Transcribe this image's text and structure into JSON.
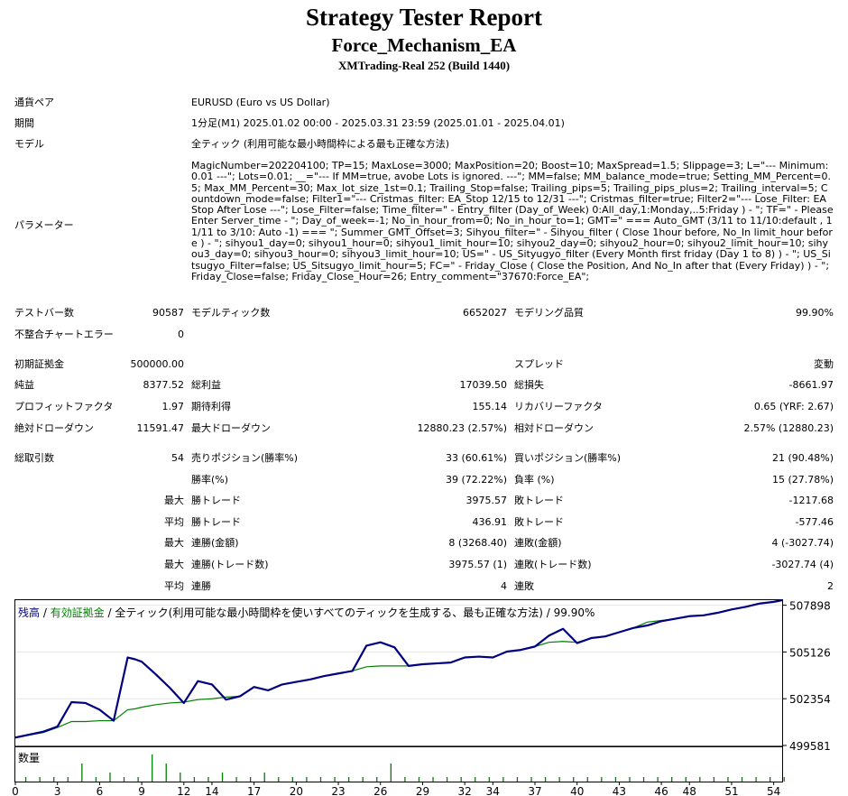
{
  "header": {
    "title": "Strategy Tester Report",
    "ea_name": "Force_Mechanism_EA",
    "server": "XMTrading-Real 252 (Build 1440)"
  },
  "info": {
    "symbol_label": "通貨ペア",
    "symbol_value": "EURUSD (Euro vs US Dollar)",
    "period_label": "期間",
    "period_value": "1分足(M1) 2025.01.02 00:00 - 2025.03.31 23:59 (2025.01.01 - 2025.04.01)",
    "model_label": "モデル",
    "model_value": "全ティック (利用可能な最小時間枠による最も正確な方法)",
    "params_label": "パラメーター",
    "params_value": "MagicNumber=202204100; TP=15; MaxLose=3000; MaxPosition=20; Boost=10; MaxSpread=1.5; Slippage=3; L=\"--- Minimum:0.01 ---\"; Lots=0.01; __=\"--- If MM=true, avobe Lots is ignored. ---\"; MM=false; MM_balance_mode=true; Setting_MM_Percent=0.5; Max_MM_Percent=30; Max_lot_size_1st=0.1; Trailing_Stop=false; Trailing_pips=5; Trailing_pips_plus=2; Trailing_interval=5; Countdown_mode=false; Filter1=\"--- Cristmas_filter: EA_Stop 12/15 to 12/31 ---\"; Cristmas_filter=true; Filter2=\"--- Lose_Filter: EA Stop After Lose ---\"; Lose_Filter=false; Time_filter=\" - Entry_filter (Day_of_Week) 0:All_day,1:Monday,..5:Friday ) - \"; TF=\" - Please Enter Server_time - \"; Day_of_week=-1; No_in_hour_from=0; No_in_hour_to=1; GMT=\" === Auto_GMT (3/11 to 11/10:default , 11/11 to 3/10: Auto -1) === \"; Summer_GMT_Offset=3; Sihyou_filter=\" - Sihyou_filter ( Close 1hour before, No_In limit_hour before ) - \"; sihyou1_day=0; sihyou1_hour=0; sihyou1_limit_hour=10; sihyou2_day=0; sihyou2_hour=0; sihyou2_limit_hour=10; sihyou3_day=0; sihyou3_hour=0; sihyou3_limit_hour=10; US=\" - US_Sityugyo_filter (Every Month first friday (Day 1 to 8) ) - \"; US_Sitsugyo_Filter=false; US_Sitsugyo_limit_hour=5; FC=\" - Friday_Close ( Close the Position, And No_In after that (Every Friday) ) - \"; Friday_Close=false; Friday_Close_Hour=26; Entry_comment=\"37670:Force_EA\";"
  },
  "stats": {
    "bars_label": "テストバー数",
    "bars_value": "90587",
    "ticks_label": "モデルティック数",
    "ticks_value": "6652027",
    "quality_label": "モデリング品質",
    "quality_value": "99.90%",
    "mismatch_label": "不整合チャートエラー",
    "mismatch_value": "0",
    "deposit_label": "初期証拠金",
    "deposit_value": "500000.00",
    "spread_label": "スプレッド",
    "spread_value": "変動",
    "net_label": "純益",
    "net_value": "8377.52",
    "gross_profit_label": "総利益",
    "gross_profit_value": "17039.50",
    "gross_loss_label": "総損失",
    "gross_loss_value": "-8661.97",
    "pf_label": "プロフィットファクタ",
    "pf_value": "1.97",
    "expected_label": "期待利得",
    "expected_value": "155.14",
    "recovery_label": "リカバリーファクタ",
    "recovery_value": "0.65 (YRF: 2.67)",
    "abs_dd_label": "絶対ドローダウン",
    "abs_dd_value": "11591.47",
    "max_dd_label": "最大ドローダウン",
    "max_dd_value": "12880.23 (2.57%)",
    "rel_dd_label": "相対ドローダウン",
    "rel_dd_value": "2.57% (12880.23)",
    "total_label": "総取引数",
    "total_value": "54",
    "short_label": "売りポジション(勝率%)",
    "short_value": "33 (60.61%)",
    "long_label": "買いポジション(勝率%)",
    "long_value": "21 (90.48%)",
    "winrate_label": "勝率(%)",
    "winrate_value": "39 (72.22%)",
    "lossrate_label": "負率 (%)",
    "lossrate_value": "15 (27.78%)",
    "max_word": "最大",
    "avg_word": "平均",
    "win_trade_label": "勝トレード",
    "max_win_value": "3975.57",
    "loss_trade_label": "敗トレード",
    "max_loss_value": "-1217.68",
    "avg_win_value": "436.91",
    "avg_loss_value": "-577.46",
    "consec_win_amt_label": "連勝(金額)",
    "consec_win_amt_value": "8 (3268.40)",
    "consec_loss_amt_label": "連敗(金額)",
    "consec_loss_amt_value": "4 (-3027.74)",
    "consec_win_cnt_label": "連勝(トレード数)",
    "consec_win_cnt_value": "3975.57 (1)",
    "consec_loss_cnt_label": "連敗(トレード数)",
    "consec_loss_cnt_value": "-3027.74 (4)",
    "consec_win_label": "連勝",
    "consec_win_value": "4",
    "consec_loss_label": "連敗",
    "consec_loss_value": "2"
  },
  "chart_data": {
    "type": "line",
    "legend_balance": "残高",
    "legend_sep1": " / ",
    "legend_equity": "有効証拠金",
    "legend_sep2": " / ",
    "legend_model": "全ティック(利用可能な最小時間枠を使いすべてのティックを生成する、最も正確な方法) / 99.90%",
    "volume_label": "数量",
    "colors": {
      "balance": "#000080",
      "equity": "#008000",
      "volume": "#008000"
    },
    "ylim": [
      499581,
      508200
    ],
    "y_ticks": [
      499581,
      502354,
      505126,
      507898
    ],
    "x_ticks": [
      0,
      3,
      6,
      9,
      12,
      14,
      17,
      20,
      23,
      26,
      29,
      32,
      34,
      37,
      40,
      43,
      46,
      48,
      51,
      54
    ],
    "xlim": [
      0,
      54.6
    ],
    "series": [
      {
        "name": "残高",
        "x": [
          0,
          2,
          3,
          4,
          5,
          6,
          7,
          8,
          8.5,
          9,
          10,
          11,
          12,
          13,
          14,
          15,
          16,
          17,
          18,
          19,
          20,
          21,
          22,
          23,
          24,
          25,
          26,
          27,
          28,
          29,
          30,
          31,
          32,
          33,
          34,
          35,
          36,
          37,
          38,
          39,
          40,
          41,
          42,
          43,
          44,
          45,
          46,
          47,
          48,
          49,
          50,
          51,
          52,
          53,
          54,
          54.6
        ],
        "values": [
          500050,
          500400,
          500700,
          502150,
          502100,
          501700,
          501050,
          504800,
          504700,
          504550,
          503800,
          503000,
          502100,
          503400,
          503200,
          502300,
          502500,
          503050,
          502850,
          503200,
          503350,
          503500,
          503700,
          503850,
          504000,
          505500,
          505700,
          505400,
          504300,
          504400,
          504450,
          504500,
          504800,
          504850,
          504800,
          505150,
          505250,
          505450,
          506100,
          506500,
          505650,
          505950,
          506050,
          506300,
          506550,
          506700,
          506950,
          507100,
          507250,
          507300,
          507450,
          507650,
          507800,
          508000,
          508100,
          508200
        ]
      },
      {
        "name": "有効証拠金",
        "x": [
          0,
          2,
          3,
          4,
          5,
          6,
          7,
          8,
          8.5,
          9,
          10,
          11,
          12,
          13,
          14,
          15,
          16,
          17,
          18,
          19,
          20,
          21,
          22,
          23,
          24,
          25,
          26,
          27,
          28,
          29,
          30,
          31,
          32,
          33,
          34,
          35,
          36,
          37,
          38,
          39,
          40,
          41,
          42,
          43,
          44,
          45,
          46,
          47,
          48,
          49,
          50,
          51,
          52,
          53,
          54,
          54.6
        ],
        "values": [
          500050,
          500350,
          500650,
          501000,
          501000,
          501050,
          501050,
          501700,
          501750,
          501850,
          502000,
          502100,
          502150,
          502300,
          502350,
          502450,
          502500,
          503050,
          502850,
          503200,
          503350,
          503500,
          503700,
          503850,
          504000,
          504250,
          504300,
          504300,
          504300,
          504400,
          504450,
          504500,
          504800,
          504850,
          504800,
          505150,
          505250,
          505450,
          505700,
          505750,
          505700,
          505950,
          506050,
          506300,
          506550,
          506900,
          507000,
          507100,
          507250,
          507300,
          507450,
          507650,
          507800,
          508000,
          508100,
          508200
        ]
      }
    ],
    "volume": [
      1,
      1,
      1,
      1,
      4,
      1,
      2,
      1,
      1,
      6,
      4,
      2,
      1,
      1,
      2,
      1,
      1,
      2,
      1,
      1,
      1,
      1,
      1,
      1,
      1,
      1,
      4,
      1,
      1,
      1,
      1,
      1,
      1,
      1,
      1,
      1,
      1,
      1,
      1,
      1,
      1,
      1,
      1,
      1,
      1,
      1,
      1,
      1,
      1,
      1,
      1,
      1,
      1,
      1,
      1
    ]
  }
}
